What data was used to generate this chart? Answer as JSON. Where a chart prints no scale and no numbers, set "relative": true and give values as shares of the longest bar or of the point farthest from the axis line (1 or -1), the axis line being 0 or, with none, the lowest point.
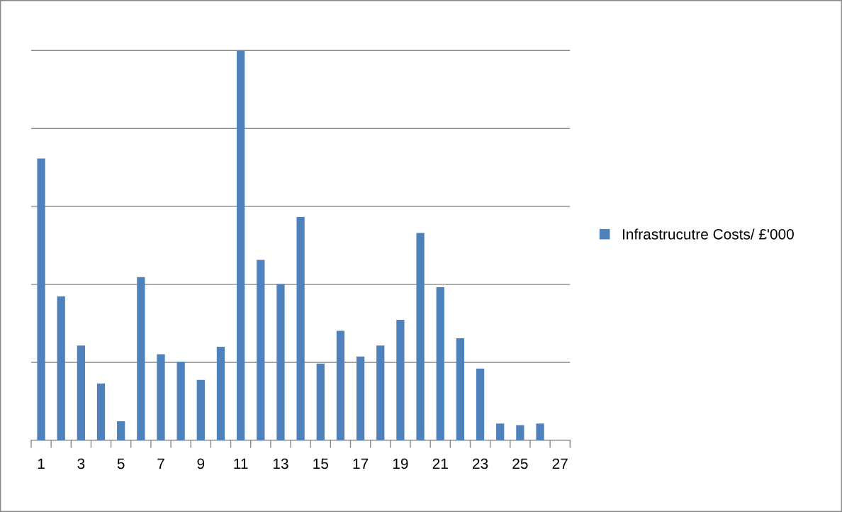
{
  "chart_data": {
    "type": "bar",
    "relative": true,
    "categories": [
      "1",
      null,
      "3",
      null,
      "5",
      null,
      "7",
      null,
      "9",
      null,
      "11",
      null,
      "13",
      null,
      "15",
      null,
      "17",
      null,
      "19",
      null,
      "21",
      null,
      "23",
      null,
      "25",
      null,
      "27"
    ],
    "series": [
      {
        "name": "Infrastrucutre Costs/ £'000",
        "color": "#4f81bd",
        "values": [
          0.723,
          0.369,
          0.243,
          0.146,
          0.049,
          0.419,
          0.221,
          0.202,
          0.155,
          0.24,
          1,
          0.463,
          0.401,
          0.573,
          0.197,
          0.281,
          0.215,
          0.243,
          0.309,
          0.532,
          0.393,
          0.262,
          0.184,
          0.043,
          0.039,
          0.043,
          null
        ]
      }
    ],
    "grid": "y",
    "legend": "right"
  }
}
